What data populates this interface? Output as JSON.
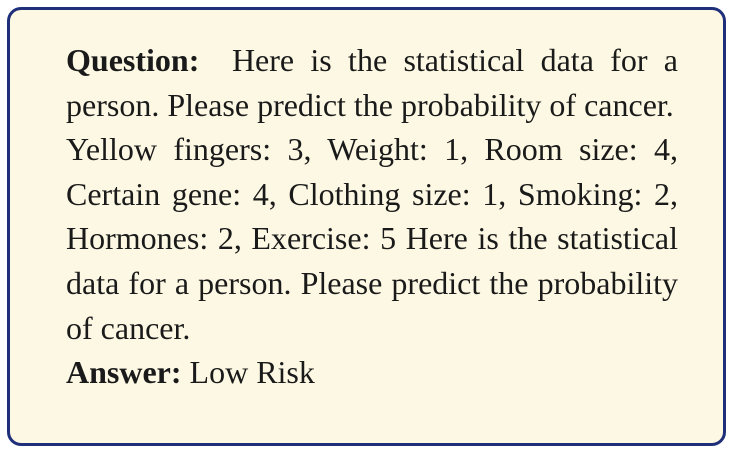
{
  "question": {
    "label": "Question:",
    "text": "Here is the statistical data for a person. Please predict the probability of cancer."
  },
  "data_line": {
    "text": "Yellow fingers: 3, Weight: 1, Room size: 4, Certain gene: 4, Clothing size: 1, Smoking: 2, Hormones: 2, Exercise: 5 Here is the statistical data for a person. Please predict the probability of cancer."
  },
  "answer": {
    "label": "Answer:",
    "text": "Low Risk"
  },
  "colors": {
    "border": "#1f2f7a",
    "background": "#fcf8e3"
  }
}
